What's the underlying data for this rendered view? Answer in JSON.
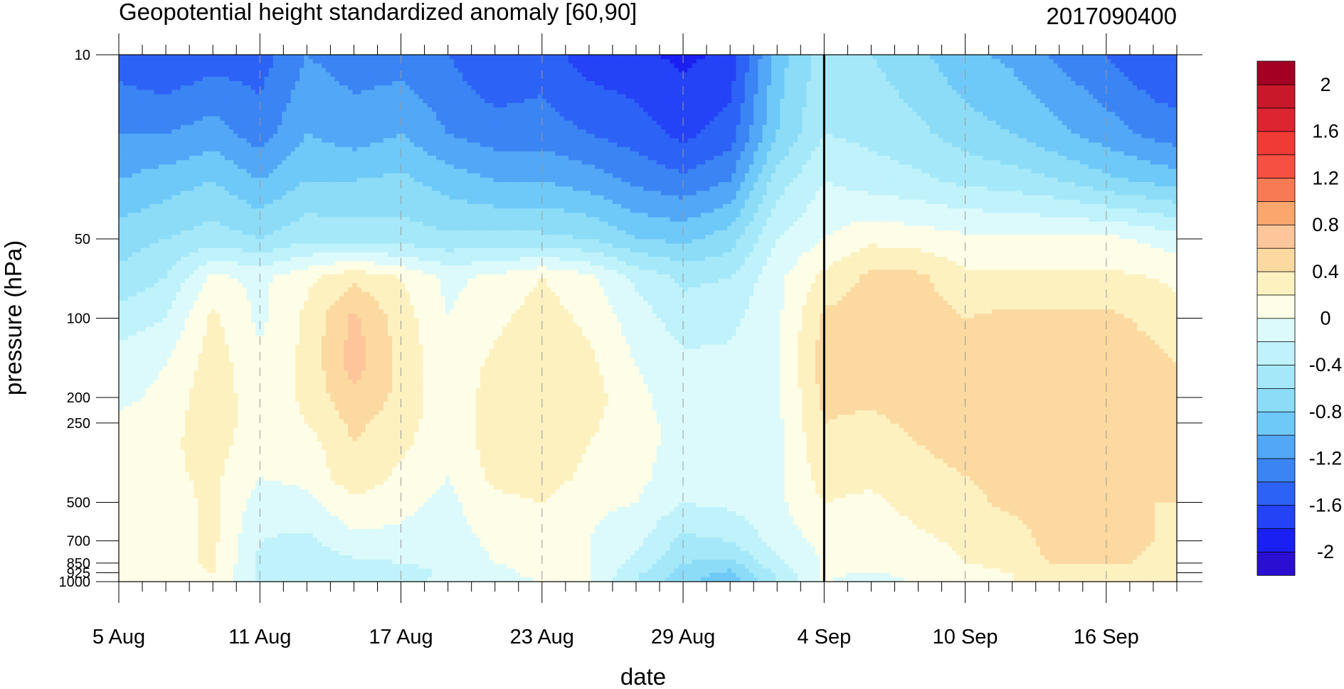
{
  "chart_data": {
    "type": "heatmap",
    "subtype": "filled-contour",
    "title": "Geopotential height standardized anomaly [60,90]",
    "right_title": "2017090400",
    "xlabel": "date",
    "ylabel": "pressure (hPa)",
    "x_start": "2017-08-05",
    "x_end": "2017-09-19",
    "x_ticks": [
      {
        "date": "2017-08-05",
        "label": "5 Aug"
      },
      {
        "date": "2017-08-11",
        "label": "11 Aug"
      },
      {
        "date": "2017-08-17",
        "label": "17 Aug"
      },
      {
        "date": "2017-08-23",
        "label": "23 Aug"
      },
      {
        "date": "2017-08-29",
        "label": "29 Aug"
      },
      {
        "date": "2017-09-04",
        "label": "4 Sep"
      },
      {
        "date": "2017-09-10",
        "label": "10 Sep"
      },
      {
        "date": "2017-09-16",
        "label": "16 Sep"
      }
    ],
    "y_scale": "log",
    "y_inverted": true,
    "ylim": [
      10,
      1000
    ],
    "y_ticks": [
      {
        "value": 10,
        "label": "10"
      },
      {
        "value": 50,
        "label": "50"
      },
      {
        "value": 100,
        "label": "100"
      },
      {
        "value": 200,
        "label": "200"
      },
      {
        "value": 250,
        "label": "250"
      },
      {
        "value": 500,
        "label": "500"
      },
      {
        "value": 700,
        "label": "700"
      },
      {
        "value": 850,
        "label": "850"
      },
      {
        "value": 925,
        "label": "925"
      },
      {
        "value": 1000,
        "label": "1000"
      }
    ],
    "reference_line": "2017-09-04",
    "grid": "dashed vertical lines at major date ticks",
    "legend": "colorbar, right",
    "colorbar": {
      "labels": [
        "2",
        "1.6",
        "1.2",
        "0.8",
        "0.4",
        "0",
        "-0.4",
        "-0.8",
        "-1.2",
        "-1.6",
        "-2"
      ],
      "levels": [
        -2.2,
        -2.0,
        -1.8,
        -1.6,
        -1.4,
        -1.2,
        -1.0,
        -0.8,
        -0.6,
        -0.4,
        -0.2,
        0.0,
        0.2,
        0.4,
        0.6,
        0.8,
        1.0,
        1.2,
        1.4,
        1.6,
        1.8,
        2.0,
        2.2
      ],
      "colors": [
        "#2a0fd2",
        "#1a1ff2",
        "#2442f6",
        "#2d62f6",
        "#3a84f4",
        "#52a7f6",
        "#6ec9f8",
        "#8cdcf8",
        "#a5e8f9",
        "#bff2fa",
        "#dcfafb",
        "#fefde7",
        "#fdf1c0",
        "#fcd9a0",
        "#fcc69a",
        "#fba66c",
        "#f87a54",
        "#f55041",
        "#ef3a36",
        "#dd2431",
        "#c8182a",
        "#a30024"
      ]
    },
    "pressure_levels": [
      10,
      20,
      30,
      50,
      70,
      100,
      150,
      200,
      250,
      300,
      400,
      500,
      700,
      850,
      925,
      1000
    ],
    "dates": [
      "2017-08-05",
      "2017-08-07",
      "2017-08-09",
      "2017-08-11",
      "2017-08-13",
      "2017-08-15",
      "2017-08-17",
      "2017-08-19",
      "2017-08-21",
      "2017-08-23",
      "2017-08-25",
      "2017-08-27",
      "2017-08-29",
      "2017-08-31",
      "2017-09-02",
      "2017-09-04",
      "2017-09-06",
      "2017-09-08",
      "2017-09-10",
      "2017-09-12",
      "2017-09-14",
      "2017-09-16",
      "2017-09-18",
      "2017-09-19"
    ],
    "values": [
      [
        -1.5,
        -1.2,
        -1.0,
        -0.7,
        -0.55,
        -0.3,
        -0.1,
        -0.05,
        0.05,
        0.05,
        0.05,
        0.05,
        0.05,
        0.05,
        0.05,
        0.05
      ],
      [
        -1.6,
        -1.2,
        -0.9,
        -0.6,
        -0.4,
        -0.2,
        0.0,
        0.05,
        0.1,
        0.15,
        0.15,
        0.1,
        0.1,
        0.1,
        0.1,
        0.1
      ],
      [
        -1.5,
        -1.1,
        -0.8,
        -0.5,
        0.05,
        0.25,
        0.3,
        0.35,
        0.35,
        0.3,
        0.25,
        0.25,
        0.25,
        0.25,
        0.2,
        0.2
      ],
      [
        -1.5,
        -1.3,
        -1.0,
        -0.6,
        -0.05,
        -0.05,
        0.05,
        0.05,
        0.05,
        0.05,
        0.0,
        -0.1,
        -0.2,
        -0.25,
        -0.25,
        -0.25
      ],
      [
        -1.2,
        -1.0,
        -0.8,
        -0.45,
        0.15,
        0.25,
        0.25,
        0.25,
        0.2,
        0.1,
        0.05,
        -0.05,
        -0.25,
        -0.35,
        -0.4,
        -0.4
      ],
      [
        -1.3,
        -1.1,
        -0.8,
        -0.5,
        0.35,
        0.65,
        0.7,
        0.55,
        0.45,
        0.4,
        0.35,
        0.15,
        -0.05,
        -0.25,
        -0.35,
        -0.35
      ],
      [
        -1.3,
        -1.0,
        -0.75,
        -0.5,
        0.2,
        0.3,
        0.35,
        0.35,
        0.3,
        0.25,
        0.15,
        0.05,
        -0.05,
        -0.2,
        -0.3,
        -0.3
      ],
      [
        -1.4,
        -1.2,
        -0.9,
        -0.55,
        -0.05,
        0.0,
        0.05,
        0.05,
        0.05,
        0.05,
        0.0,
        -0.05,
        -0.1,
        -0.15,
        -0.15,
        -0.1
      ],
      [
        -1.6,
        -1.3,
        -1.0,
        -0.55,
        0.05,
        0.15,
        0.25,
        0.3,
        0.3,
        0.3,
        0.25,
        0.15,
        0.05,
        0.0,
        -0.05,
        -0.05
      ],
      [
        -1.5,
        -1.3,
        -1.0,
        -0.55,
        0.2,
        0.3,
        0.35,
        0.35,
        0.35,
        0.35,
        0.3,
        0.2,
        0.1,
        0.05,
        0.05,
        0.0
      ],
      [
        -1.7,
        -1.4,
        -1.1,
        -0.6,
        0.05,
        0.15,
        0.25,
        0.3,
        0.25,
        0.2,
        0.15,
        0.05,
        0.0,
        0.0,
        0.0,
        0.0
      ],
      [
        -1.75,
        -1.5,
        -1.25,
        -0.8,
        -0.25,
        -0.1,
        0.0,
        0.05,
        0.05,
        0.05,
        0.05,
        0.0,
        -0.15,
        -0.25,
        -0.35,
        -0.4
      ],
      [
        -1.85,
        -1.65,
        -1.35,
        -0.85,
        -0.45,
        -0.3,
        -0.15,
        -0.1,
        -0.05,
        -0.05,
        -0.1,
        -0.2,
        -0.45,
        -0.6,
        -0.7,
        -0.75
      ],
      [
        -1.75,
        -1.5,
        -1.2,
        -0.7,
        -0.4,
        -0.25,
        -0.15,
        -0.1,
        -0.05,
        -0.05,
        -0.05,
        -0.15,
        -0.4,
        -0.65,
        -0.85,
        -0.95
      ],
      [
        -0.9,
        -0.8,
        -0.5,
        -0.2,
        -0.05,
        -0.05,
        -0.05,
        -0.05,
        -0.05,
        -0.05,
        -0.05,
        -0.05,
        -0.1,
        -0.25,
        -0.35,
        -0.4
      ],
      [
        -0.5,
        -0.4,
        -0.2,
        0.0,
        0.25,
        0.45,
        0.5,
        0.45,
        0.4,
        0.35,
        0.3,
        0.2,
        0.05,
        0.02,
        0.02,
        0.02
      ],
      [
        -0.6,
        -0.45,
        -0.3,
        0.15,
        0.45,
        0.5,
        0.5,
        0.45,
        0.35,
        0.3,
        0.25,
        0.15,
        0.0,
        0.0,
        0.0,
        -0.1
      ],
      [
        -0.75,
        -0.55,
        -0.35,
        0.1,
        0.45,
        0.5,
        0.5,
        0.5,
        0.45,
        0.4,
        0.35,
        0.3,
        0.15,
        0.1,
        0.05,
        0.02
      ],
      [
        -0.95,
        -0.7,
        -0.45,
        0.05,
        0.25,
        0.4,
        0.5,
        0.5,
        0.5,
        0.45,
        0.4,
        0.35,
        0.25,
        0.2,
        0.15,
        0.1
      ],
      [
        -1.05,
        -0.8,
        -0.5,
        0.05,
        0.25,
        0.45,
        0.5,
        0.55,
        0.5,
        0.45,
        0.45,
        0.45,
        0.3,
        0.25,
        0.2,
        0.2
      ],
      [
        -1.25,
        -0.95,
        -0.6,
        0.05,
        0.25,
        0.45,
        0.5,
        0.55,
        0.55,
        0.55,
        0.55,
        0.5,
        0.5,
        0.45,
        0.3,
        0.25
      ],
      [
        -1.4,
        -1.1,
        -0.75,
        0.05,
        0.25,
        0.45,
        0.5,
        0.5,
        0.55,
        0.55,
        0.55,
        0.5,
        0.5,
        0.45,
        0.3,
        0.25
      ],
      [
        -1.6,
        -1.25,
        -0.85,
        -0.05,
        0.2,
        0.35,
        0.45,
        0.45,
        0.45,
        0.45,
        0.45,
        0.4,
        0.4,
        0.35,
        0.25,
        0.25
      ],
      [
        -1.6,
        -1.3,
        -0.9,
        -0.1,
        0.15,
        0.3,
        0.4,
        0.45,
        0.45,
        0.45,
        0.45,
        0.4,
        0.35,
        0.3,
        0.25,
        0.25
      ]
    ]
  }
}
